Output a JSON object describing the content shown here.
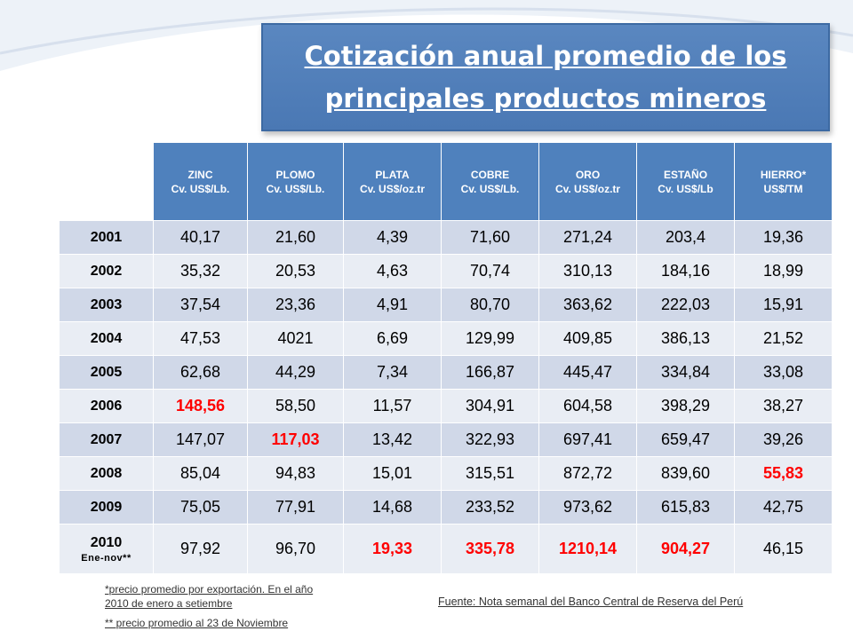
{
  "title": {
    "line1": "Cotización anual promedio de los",
    "line2": "principales productos mineros"
  },
  "table": {
    "columns": [
      {
        "name": "ZINC",
        "unit": "Cv. US$/Lb."
      },
      {
        "name": "PLOMO",
        "unit": "Cv. US$/Lb."
      },
      {
        "name": "PLATA",
        "unit": "Cv. US$/oz.tr"
      },
      {
        "name": "COBRE",
        "unit": "Cv. US$/Lb."
      },
      {
        "name": "ORO",
        "unit": "Cv. US$/oz.tr"
      },
      {
        "name": "ESTAÑO",
        "unit": "Cv. US$/Lb"
      },
      {
        "name": "HIERRO*",
        "unit": "US$/TM"
      }
    ],
    "rows": [
      {
        "year": "2001",
        "values": [
          "40,17",
          "21,60",
          "4,39",
          "71,60",
          "271,24",
          "203,4",
          "19,36"
        ]
      },
      {
        "year": "2002",
        "values": [
          "35,32",
          "20,53",
          "4,63",
          "70,74",
          "310,13",
          "184,16",
          "18,99"
        ]
      },
      {
        "year": "2003",
        "values": [
          "37,54",
          "23,36",
          "4,91",
          "80,70",
          "363,62",
          "222,03",
          "15,91"
        ]
      },
      {
        "year": "2004",
        "values": [
          "47,53",
          "4021",
          "6,69",
          "129,99",
          "409,85",
          "386,13",
          "21,52"
        ]
      },
      {
        "year": "2005",
        "values": [
          "62,68",
          "44,29",
          "7,34",
          "166,87",
          "445,47",
          "334,84",
          "33,08"
        ]
      },
      {
        "year": "2006",
        "values": [
          "148,56",
          "58,50",
          "11,57",
          "304,91",
          "604,58",
          "398,29",
          "38,27"
        ]
      },
      {
        "year": "2007",
        "values": [
          "147,07",
          "117,03",
          "13,42",
          "322,93",
          "697,41",
          "659,47",
          "39,26"
        ]
      },
      {
        "year": "2008",
        "values": [
          "85,04",
          "94,83",
          "15,01",
          "315,51",
          "872,72",
          "839,60",
          "55,83"
        ]
      },
      {
        "year": "2009",
        "values": [
          "75,05",
          "77,91",
          "14,68",
          "233,52",
          "973,62",
          "615,83",
          "42,75"
        ]
      },
      {
        "year": "2010",
        "year_sub": "Ene-nov**",
        "values": [
          "97,92",
          "96,70",
          "19,33",
          "335,78",
          "1210,14",
          "904,27",
          "46,15"
        ]
      }
    ],
    "highlight_color": "#ff0000"
  },
  "notes": {
    "note1": "*precio promedio por exportación. En el año 2010 de enero a setiembre",
    "note2": "** precio promedio al 23 de Noviembre",
    "source": "Fuente: Nota semanal del Banco Central de Reserva del Perú"
  },
  "colors": {
    "title_bg": "#4f81bd",
    "header_bg": "#4f81bd",
    "row_odd": "#d0d8e8",
    "row_even": "#e9edf4"
  }
}
